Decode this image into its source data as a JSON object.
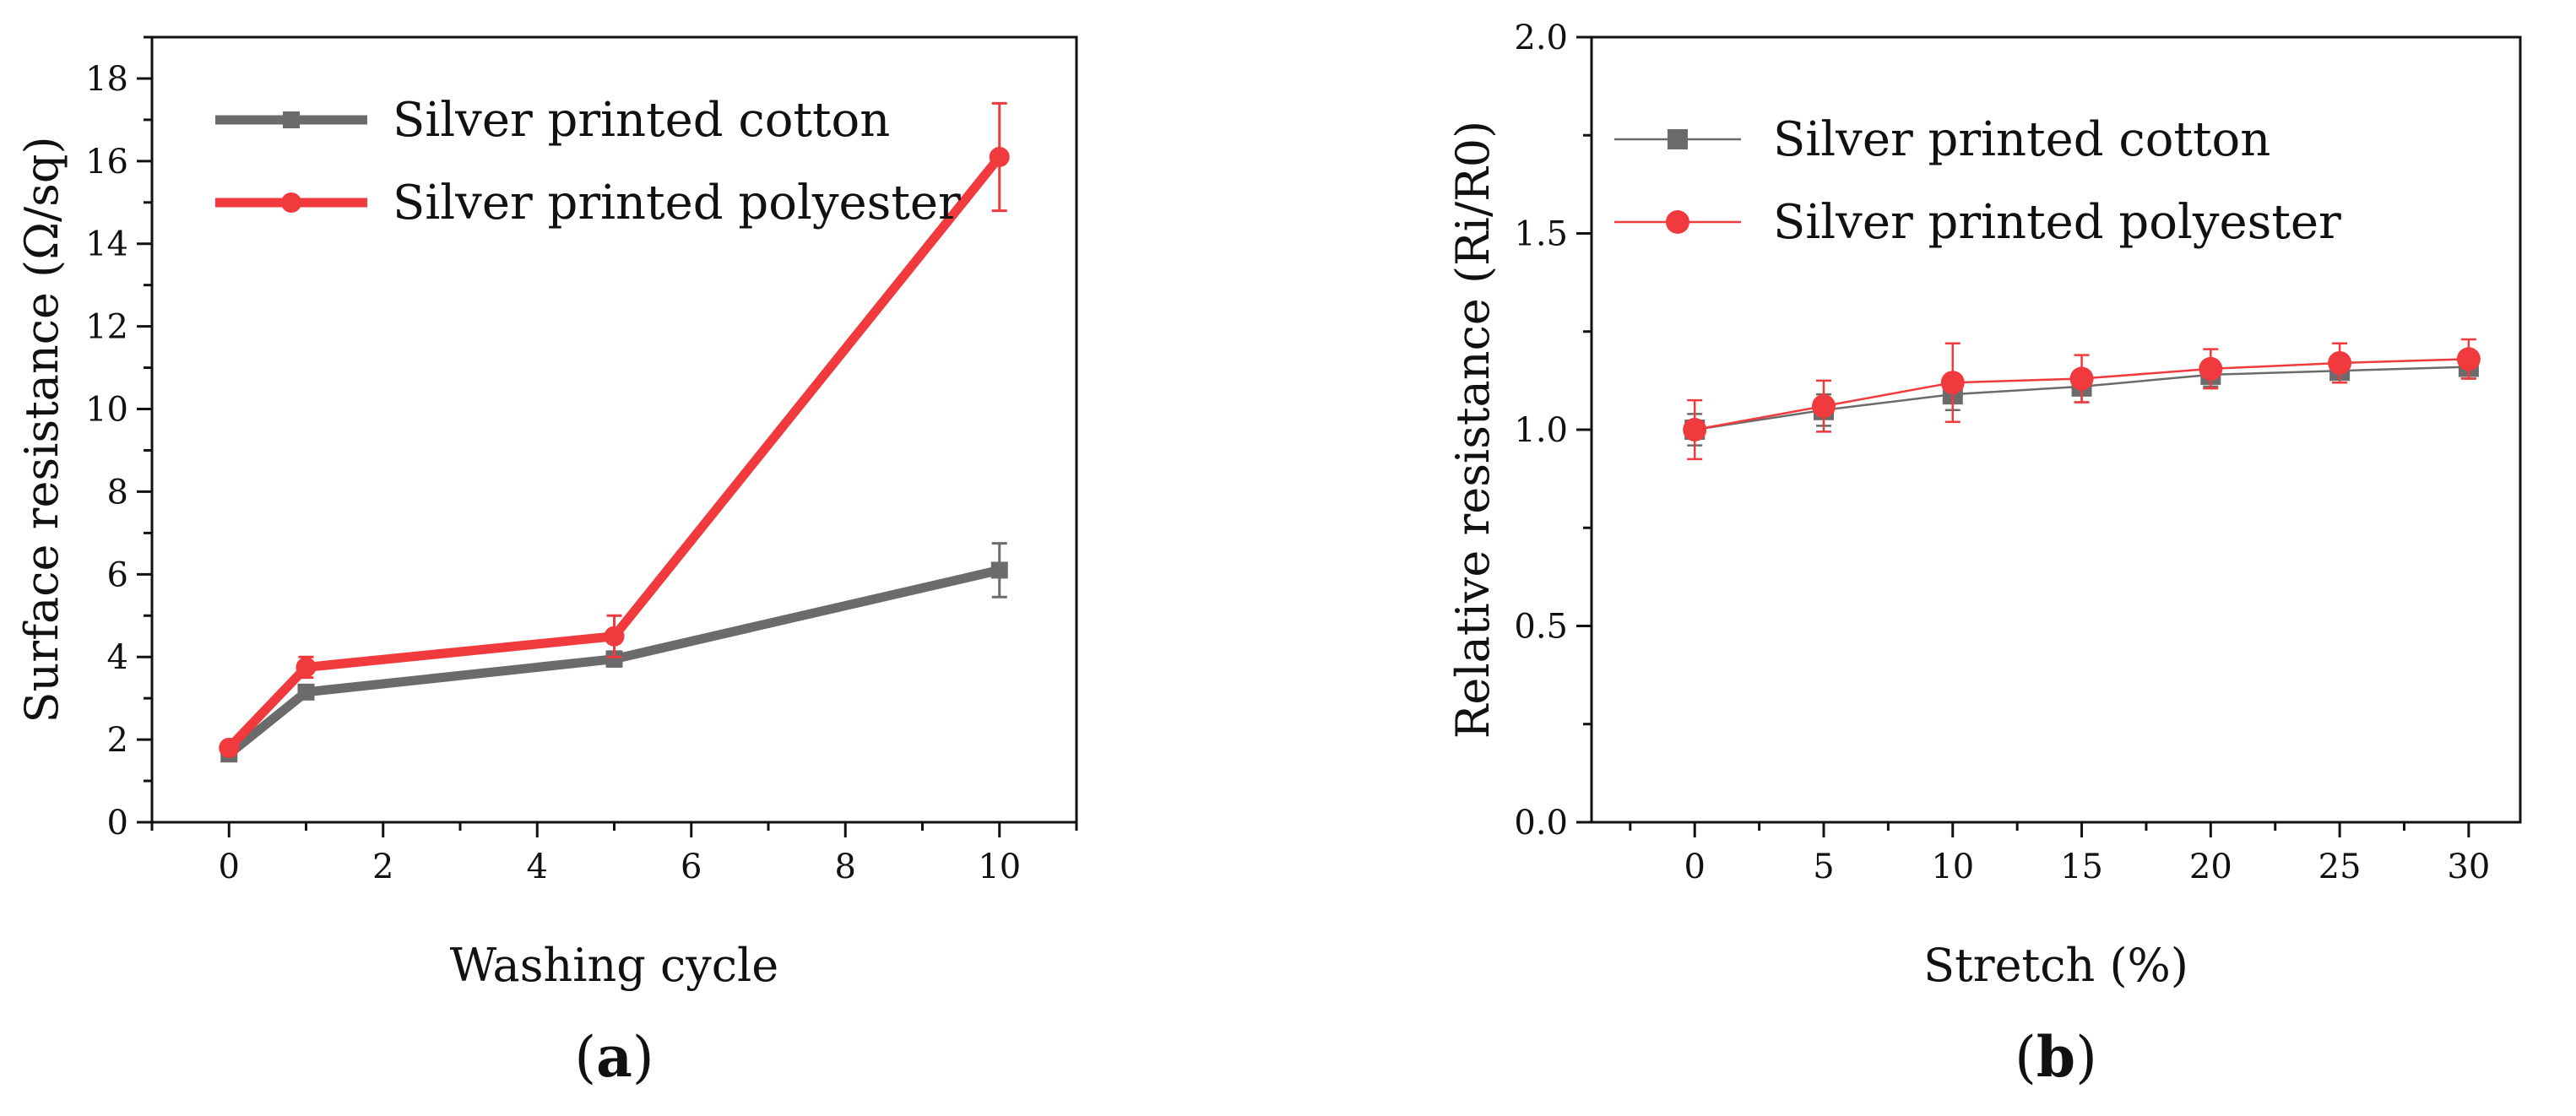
{
  "chart_data": [
    {
      "type": "line",
      "panel_label": "a",
      "xlabel": "Washing cycle",
      "ylabel": "Surface resistance (Ω/sq)",
      "xlim": [
        -1,
        11
      ],
      "ylim": [
        0,
        19
      ],
      "xticks": [
        0,
        2,
        4,
        6,
        8,
        10
      ],
      "yticks": [
        0,
        2,
        4,
        6,
        8,
        10,
        12,
        14,
        16,
        18
      ],
      "x": [
        0,
        1,
        5,
        10
      ],
      "legend_position": "top-left",
      "grid": false,
      "series": [
        {
          "name": "Silver printed cotton",
          "color": "#6b6b6b",
          "marker": "square",
          "values": [
            1.65,
            3.15,
            3.95,
            6.1
          ],
          "errors": [
            0.1,
            0.12,
            0.18,
            0.65
          ]
        },
        {
          "name": "Silver printed polyester",
          "color": "#f03a3d",
          "marker": "circle",
          "values": [
            1.8,
            3.75,
            4.5,
            16.1
          ],
          "errors": [
            0.12,
            0.25,
            0.5,
            1.3
          ]
        }
      ]
    },
    {
      "type": "line",
      "panel_label": "b",
      "xlabel": "Stretch (%)",
      "ylabel": "Relative resistance (Ri/R0)",
      "xlim": [
        -4,
        32
      ],
      "ylim": [
        0,
        2
      ],
      "xticks": [
        0,
        5,
        10,
        15,
        20,
        25,
        30
      ],
      "yticks": [
        0.0,
        0.5,
        1.0,
        1.5,
        2.0
      ],
      "x": [
        0,
        5,
        10,
        15,
        20,
        25,
        30
      ],
      "legend_position": "top-left",
      "grid": false,
      "series": [
        {
          "name": "Silver printed cotton",
          "color": "#6b6b6b",
          "marker": "square",
          "values": [
            1.0,
            1.05,
            1.09,
            1.11,
            1.14,
            1.15,
            1.16
          ],
          "errors": [
            0.04,
            0.04,
            0.04,
            0.04,
            0.03,
            0.03,
            0.03
          ]
        },
        {
          "name": "Silver printed polyester",
          "color": "#f03a3d",
          "marker": "circle",
          "values": [
            1.0,
            1.06,
            1.12,
            1.13,
            1.155,
            1.17,
            1.18
          ],
          "errors": [
            0.075,
            0.065,
            0.1,
            0.06,
            0.05,
            0.05,
            0.05
          ]
        }
      ]
    }
  ]
}
